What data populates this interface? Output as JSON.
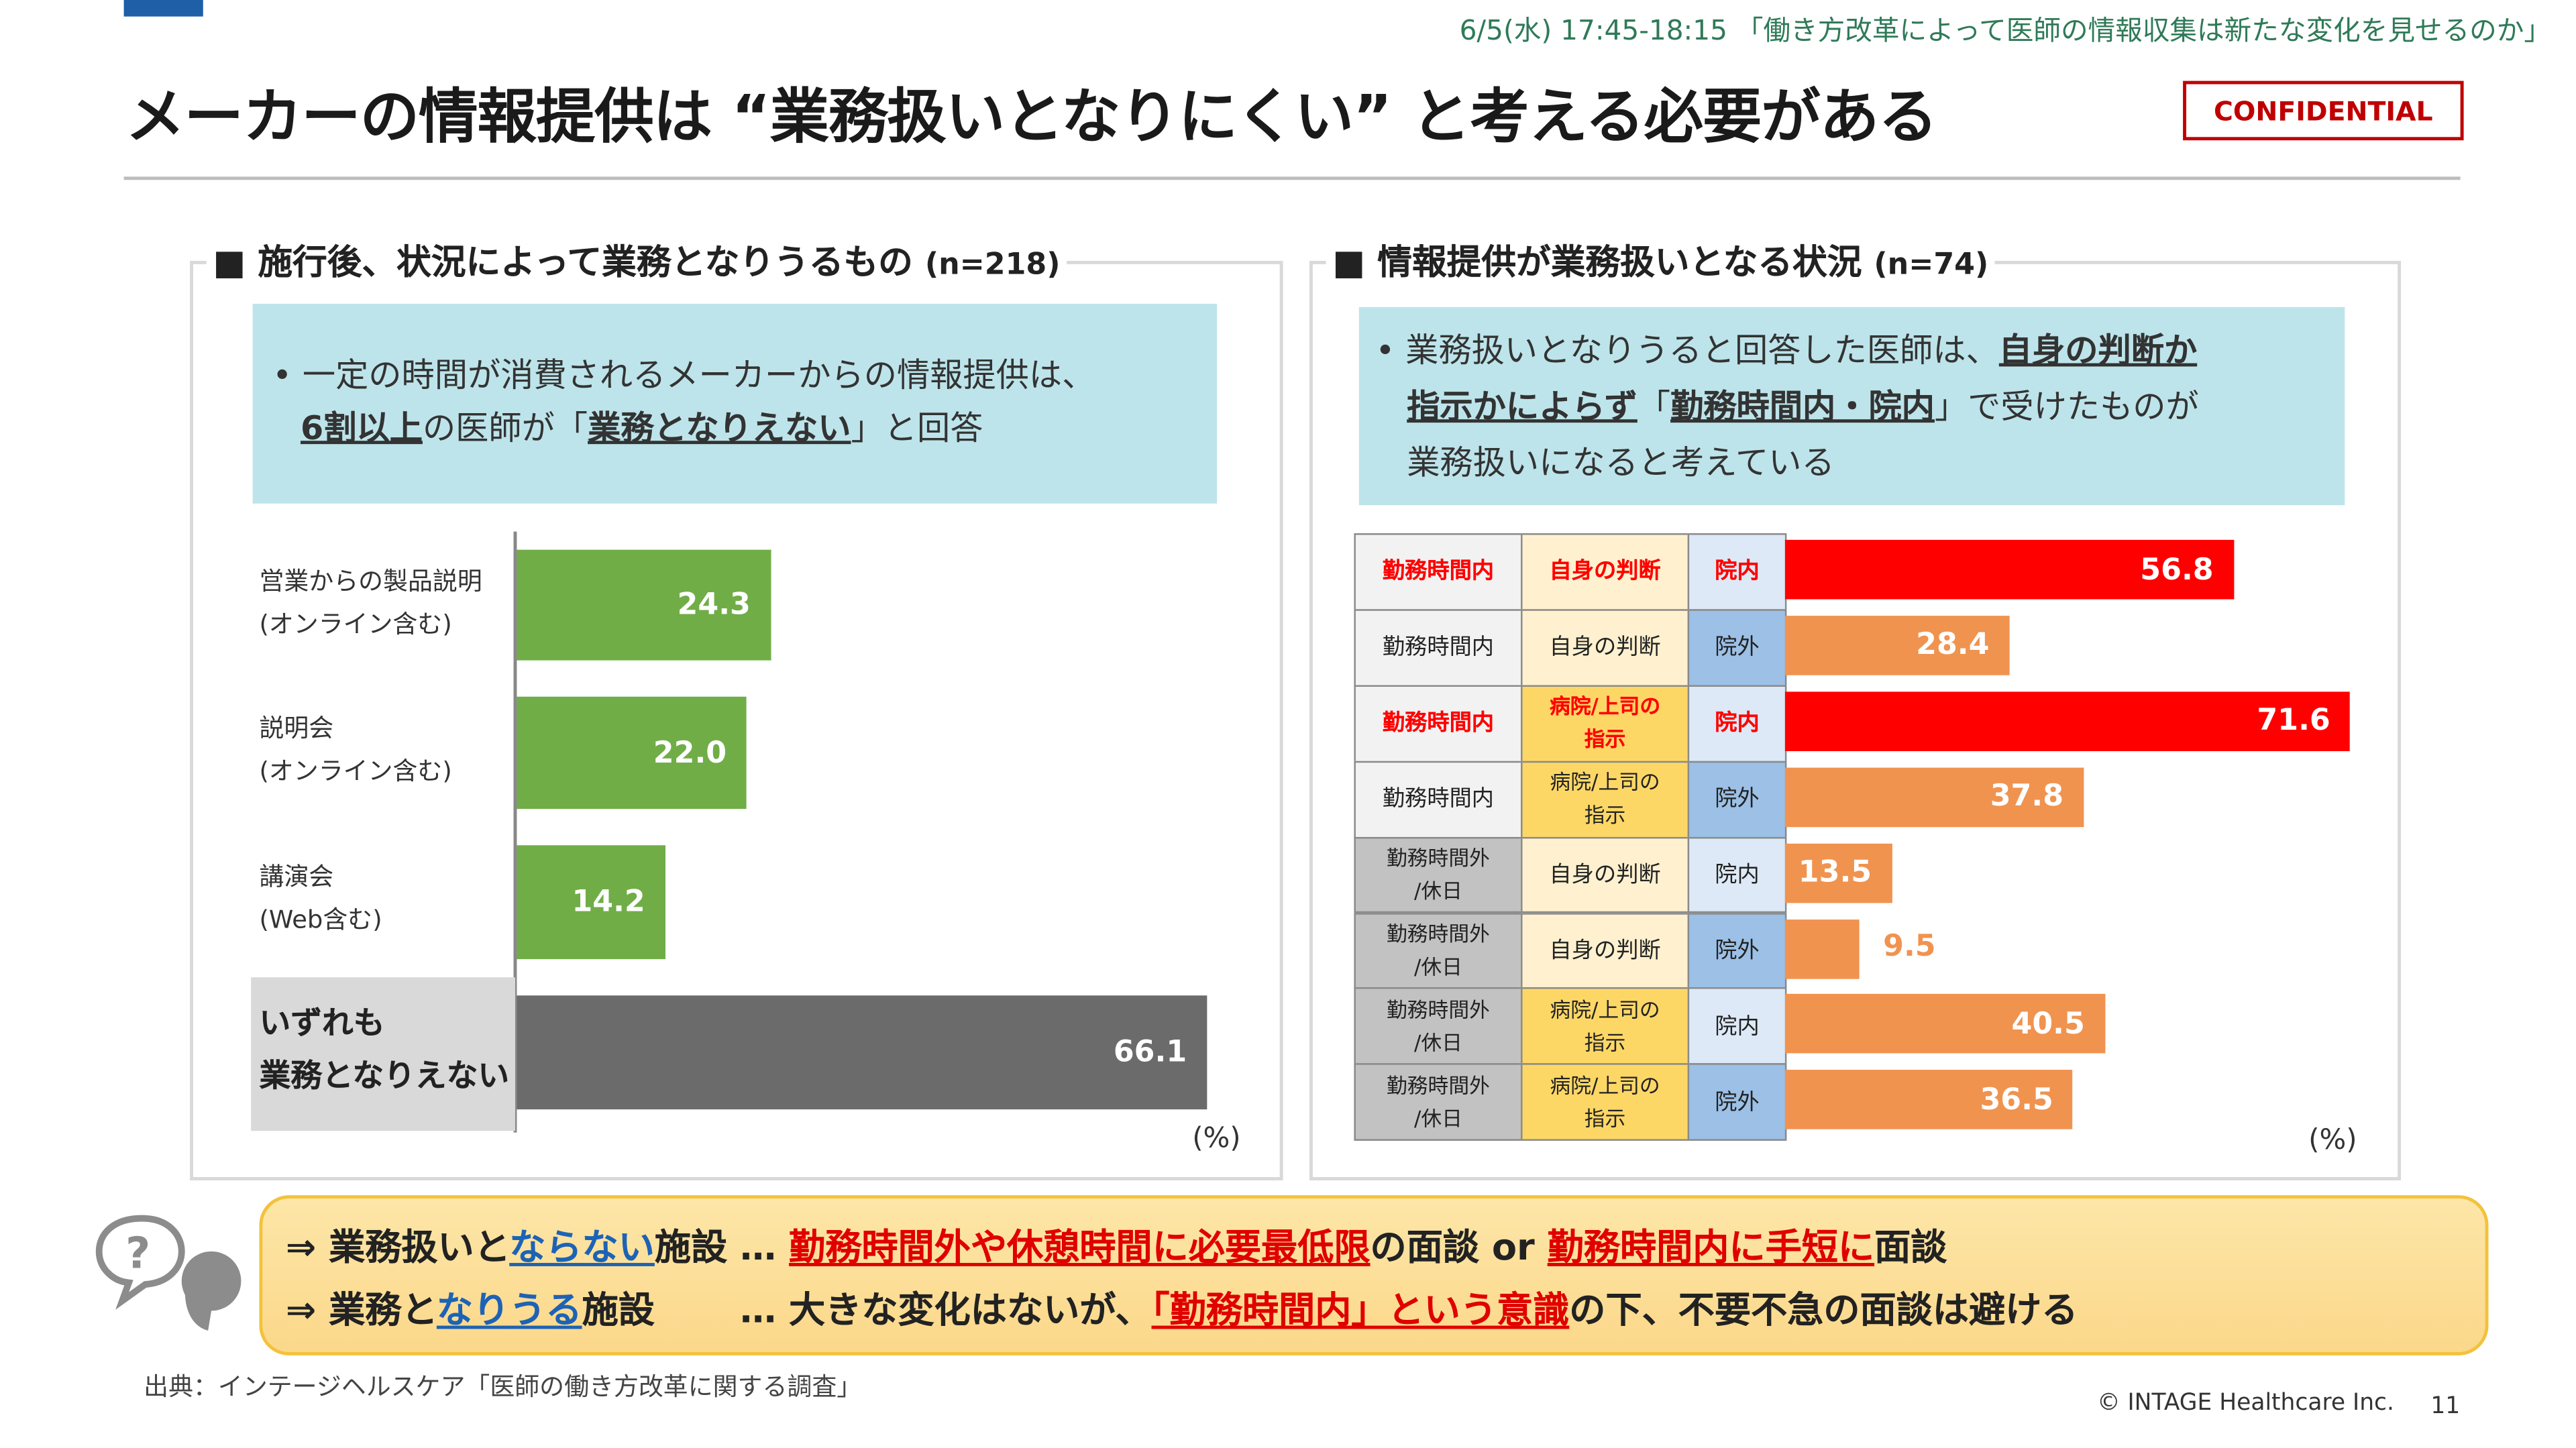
{
  "header": {
    "session": "6/5(水) 17:45-18:15 「働き方改革によって医師の情報収集は新たな変化を見せるのか」",
    "title": "メーカーの情報提供は “業務扱いとなりにくい” と考える必要がある",
    "confidential": "CONFIDENTIAL"
  },
  "left": {
    "title": "■ 施行後、状況によって業務となりうるもの",
    "n": "(n=218)",
    "callout": {
      "bullet": "•",
      "l1": "一定の時間が消費されるメーカーからの情報提供は、",
      "u1": "6割以上",
      "t1": "の医師が「",
      "u2": "業務となりえない",
      "t2": "」と回答"
    },
    "unit": "(%)"
  },
  "right": {
    "title": "■ 情報提供が業務扱いとなる状況",
    "n": "(n=74)",
    "callout": {
      "bullet": "•",
      "t1": "業務扱いとなりうると回答した医師は、",
      "u1": "自身の判断か",
      "u2": "指示かによらず",
      "t2": "「",
      "u3": "勤務時間内・院内",
      "t3": "」で受けたものが",
      "t4": "業務扱いになると考えている"
    },
    "unit": "(%)"
  },
  "chart_data": [
    {
      "type": "bar",
      "orientation": "horizontal",
      "categories": [
        [
          "営業からの製品説明",
          "(オンライン含む)"
        ],
        [
          "説明会",
          "(オンライン含む)"
        ],
        [
          "講演会",
          "(Web含む)"
        ],
        [
          "いずれも",
          "業務となりえない"
        ]
      ],
      "values": [
        24.3,
        22.0,
        14.2,
        66.1
      ],
      "labels": [
        "24.3",
        "22.0",
        "14.2",
        "66.1"
      ],
      "colors": [
        "#70ad47",
        "#70ad47",
        "#70ad47",
        "#6b6b6b"
      ],
      "unit": "(%)",
      "xlim": [
        0,
        70
      ]
    },
    {
      "type": "bar",
      "orientation": "horizontal",
      "rows": [
        {
          "time": "勤務時間内",
          "decision": "自身の判断",
          "place": "院内",
          "value": 56.8,
          "label": "56.8",
          "highlight": true
        },
        {
          "time": "勤務時間内",
          "decision": "自身の判断",
          "place": "院外",
          "value": 28.4,
          "label": "28.4",
          "highlight": false
        },
        {
          "time": "勤務時間内",
          "decision": "病院/上司の指示",
          "place": "院内",
          "value": 71.6,
          "label": "71.6",
          "highlight": true
        },
        {
          "time": "勤務時間内",
          "decision": "病院/上司の指示",
          "place": "院外",
          "value": 37.8,
          "label": "37.8",
          "highlight": false
        },
        {
          "time": "勤務時間外/休日",
          "decision": "自身の判断",
          "place": "院内",
          "value": 13.5,
          "label": "13.5",
          "highlight": false
        },
        {
          "time": "勤務時間外/休日",
          "decision": "自身の判断",
          "place": "院外",
          "value": 9.5,
          "label": "9.5",
          "highlight": false
        },
        {
          "time": "勤務時間外/休日",
          "decision": "病院/上司の指示",
          "place": "院内",
          "value": 40.5,
          "label": "40.5",
          "highlight": false
        },
        {
          "time": "勤務時間外/休日",
          "decision": "病院/上司の指示",
          "place": "院外",
          "value": 36.5,
          "label": "36.5",
          "highlight": false
        }
      ],
      "colors": {
        "highlight": "#ff0000",
        "normal": "#f0934f"
      },
      "unit": "(%)",
      "xlim": [
        0,
        75
      ]
    }
  ],
  "conclusion": {
    "l1": {
      "a": "⇒ 業務扱いと",
      "b": "ならない",
      "c": "施設 … ",
      "d": "勤務時間外や休憩時間に必要最低限",
      "e": "の面談 or ",
      "f": "勤務時間内に手短に",
      "g": "面談"
    },
    "l2": {
      "a": "⇒ 業務と",
      "b": "なりうる",
      "c": "施設　　 … 大きな変化はないが、",
      "d": "「勤務時間内」という意識",
      "e": "の下、不要不急の面談は避ける"
    }
  },
  "footer": {
    "source": "出典：インテージヘルスケア「医師の働き方改革に関する調査」",
    "copyright": "© INTAGE Healthcare Inc.",
    "page": "11"
  }
}
